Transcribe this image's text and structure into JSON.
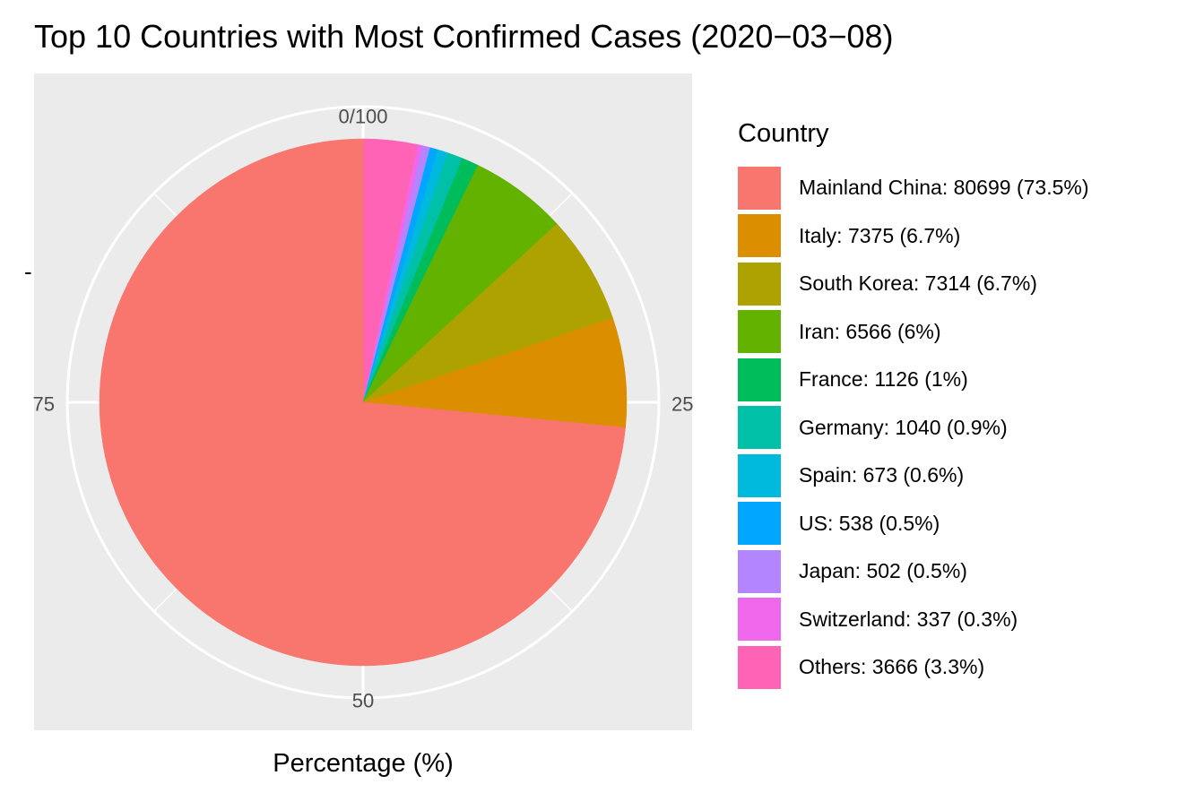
{
  "chart_data": {
    "type": "pie",
    "title": "Top 10 Countries with Most Confirmed Cases (2020−03−08)",
    "xlabel": "Percentage (%)",
    "ylabel": "",
    "y_tick_mark": "-",
    "theta_ticks": [
      "0/100",
      "25",
      "50",
      "75"
    ],
    "legend_title": "Country",
    "legend_position": "right",
    "slices": [
      {
        "name": "Mainland China",
        "value": 80699,
        "percent": 73.5,
        "label": "Mainland China: 80699 (73.5%)",
        "color": "#F8766D"
      },
      {
        "name": "Italy",
        "value": 7375,
        "percent": 6.7,
        "label": "Italy: 7375 (6.7%)",
        "color": "#DB8E00"
      },
      {
        "name": "South Korea",
        "value": 7314,
        "percent": 6.7,
        "label": "South Korea: 7314 (6.7%)",
        "color": "#AEA200"
      },
      {
        "name": "Iran",
        "value": 6566,
        "percent": 6,
        "label": "Iran: 6566 (6%)",
        "color": "#64B200"
      },
      {
        "name": "France",
        "value": 1126,
        "percent": 1,
        "label": "France: 1126 (1%)",
        "color": "#00BD5C"
      },
      {
        "name": "Germany",
        "value": 1040,
        "percent": 0.9,
        "label": "Germany: 1040 (0.9%)",
        "color": "#00C1A7"
      },
      {
        "name": "Spain",
        "value": 673,
        "percent": 0.6,
        "label": "Spain: 673 (0.6%)",
        "color": "#00BADE"
      },
      {
        "name": "US",
        "value": 538,
        "percent": 0.5,
        "label": "US: 538 (0.5%)",
        "color": "#00A6FF"
      },
      {
        "name": "Japan",
        "value": 502,
        "percent": 0.5,
        "label": "Japan: 502 (0.5%)",
        "color": "#B385FF"
      },
      {
        "name": "Switzerland",
        "value": 337,
        "percent": 0.3,
        "label": "Switzerland: 337 (0.3%)",
        "color": "#EF67EB"
      },
      {
        "name": "Others",
        "value": 3666,
        "percent": 3.3,
        "label": "Others: 3666 (3.3%)",
        "color": "#FF63B6"
      }
    ],
    "draw_order": [
      "Others",
      "Switzerland",
      "Japan",
      "US",
      "Spain",
      "Germany",
      "France",
      "Iran",
      "South Korea",
      "Italy",
      "Mainland China"
    ],
    "panel_background": "#EBEBEB",
    "grid_color": "#FFFFFF"
  }
}
